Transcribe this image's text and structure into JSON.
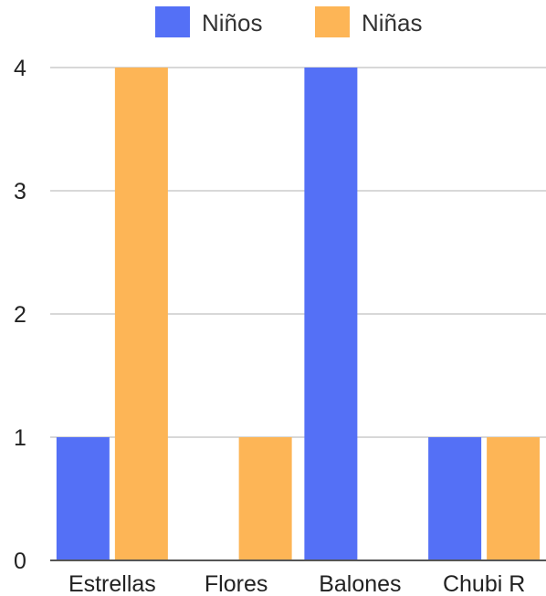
{
  "chart_data": {
    "type": "bar",
    "categories": [
      "Estrellas",
      "Flores",
      "Balones",
      "Chubi R"
    ],
    "series": [
      {
        "name": "Niños",
        "values": [
          1,
          0,
          4,
          1
        ],
        "color": "#5470f6"
      },
      {
        "name": "Niñas",
        "values": [
          4,
          1,
          0,
          1
        ],
        "color": "#fdb556"
      }
    ],
    "ylim": [
      0,
      4
    ],
    "yticks": [
      0,
      1,
      2,
      3,
      4
    ],
    "grid": true,
    "legend": "top"
  }
}
